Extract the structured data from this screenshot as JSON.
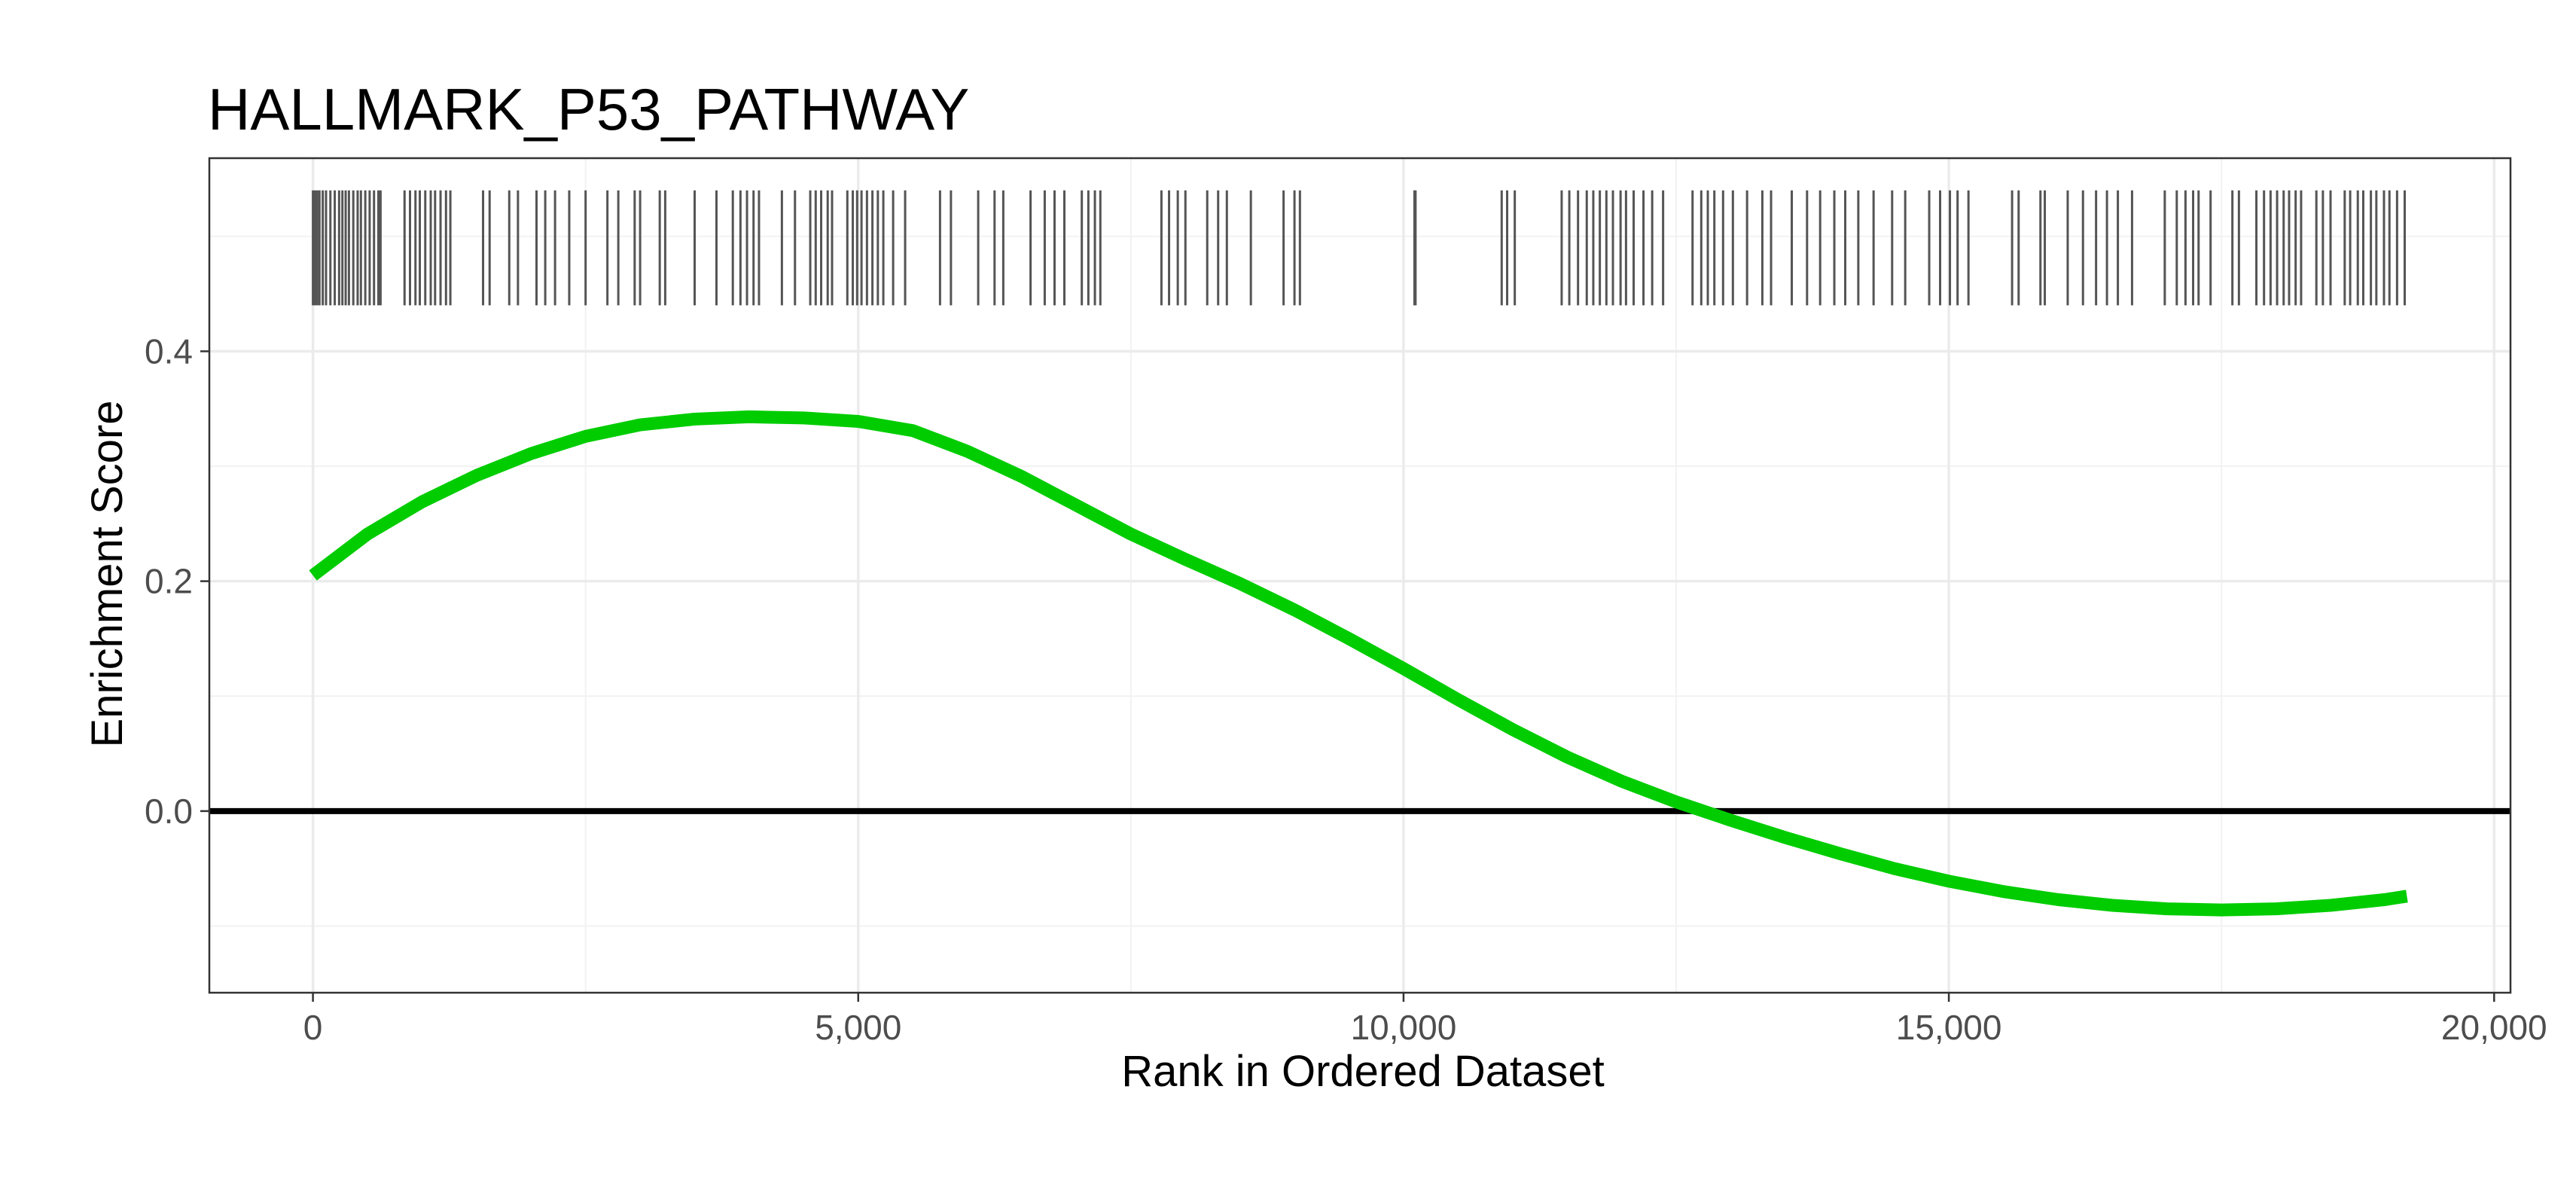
{
  "chart_data": {
    "type": "line",
    "title": "HALLMARK_P53_PATHWAY",
    "xlabel": "Rank in Ordered Dataset",
    "ylabel": "Enrichment Score",
    "xlim": [
      -950,
      20150
    ],
    "ylim": [
      -0.158,
      0.568
    ],
    "x_ticks": [
      0,
      5000,
      10000,
      15000,
      20000
    ],
    "x_tick_labels": [
      "0",
      "5,000",
      "10,000",
      "15,000",
      "20,000"
    ],
    "y_ticks": [
      0.0,
      0.2,
      0.4
    ],
    "y_tick_labels": [
      "0.0",
      "0.2",
      "0.4"
    ],
    "grid": true,
    "hline_y": 0,
    "series": [
      {
        "color": "#00cc00",
        "x": [
          0,
          500,
          1000,
          1500,
          2000,
          2500,
          3000,
          3500,
          4000,
          4500,
          5000,
          5500,
          6000,
          6500,
          7000,
          7500,
          8000,
          8500,
          9000,
          9500,
          10000,
          10500,
          11000,
          11500,
          12000,
          12500,
          13000,
          13500,
          14000,
          14500,
          15000,
          15500,
          16000,
          16500,
          17000,
          17500,
          18000,
          18500,
          19000,
          19200
        ],
        "values": [
          0.205,
          0.241,
          0.269,
          0.292,
          0.311,
          0.326,
          0.336,
          0.341,
          0.343,
          0.342,
          0.339,
          0.331,
          0.313,
          0.291,
          0.266,
          0.241,
          0.219,
          0.198,
          0.175,
          0.15,
          0.124,
          0.097,
          0.071,
          0.047,
          0.026,
          0.008,
          -0.008,
          -0.023,
          -0.037,
          -0.05,
          -0.061,
          -0.07,
          -0.077,
          -0.082,
          -0.085,
          -0.086,
          -0.085,
          -0.082,
          -0.077,
          -0.074
        ]
      }
    ],
    "hits": [
      0,
      20,
      40,
      60,
      90,
      120,
      160,
      200,
      240,
      270,
      300,
      330,
      370,
      410,
      440,
      480,
      520,
      560,
      600,
      620,
      840,
      890,
      940,
      980,
      1030,
      1080,
      1120,
      1170,
      1220,
      1260,
      1560,
      1620,
      1800,
      1880,
      2050,
      2130,
      2220,
      2350,
      2500,
      2700,
      2800,
      2950,
      3000,
      3180,
      3230,
      3500,
      3700,
      3850,
      3920,
      3980,
      4040,
      4090,
      4300,
      4420,
      4560,
      4610,
      4660,
      4720,
      4760,
      4900,
      4950,
      4990,
      5030,
      5080,
      5130,
      5180,
      5230,
      5320,
      5430,
      5750,
      5850,
      6100,
      6250,
      6330,
      6580,
      6710,
      6800,
      6890,
      7050,
      7110,
      7170,
      7220,
      7780,
      7850,
      7930,
      8000,
      8200,
      8300,
      8380,
      8600,
      8900,
      9000,
      9050,
      10100,
      10110,
      10900,
      10950,
      11020,
      11450,
      11520,
      11600,
      11680,
      11740,
      11800,
      11860,
      11920,
      11990,
      12040,
      12110,
      12200,
      12280,
      12380,
      12650,
      12730,
      12790,
      12850,
      12930,
      13020,
      13150,
      13290,
      13370,
      13560,
      13700,
      13820,
      13950,
      14050,
      14170,
      14310,
      14480,
      14600,
      14820,
      14920,
      15010,
      15080,
      15180,
      15580,
      15640,
      15840,
      15880,
      16090,
      16230,
      16350,
      16450,
      16550,
      16680,
      16980,
      17090,
      17170,
      17240,
      17290,
      17400,
      17600,
      17660,
      17820,
      17890,
      17950,
      18010,
      18070,
      18120,
      18180,
      18230,
      18370,
      18430,
      18500,
      18630,
      18680,
      18750,
      18800,
      18870,
      18920,
      18990,
      19040,
      19110,
      19180
    ],
    "rug_y_range": [
      0.44,
      0.54
    ]
  }
}
